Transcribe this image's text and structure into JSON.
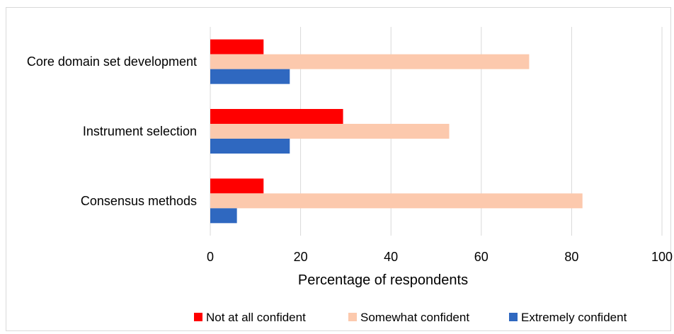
{
  "chart_data": {
    "type": "bar",
    "orientation": "horizontal",
    "categories": [
      "Core domain set development",
      "Instrument selection",
      "Consensus methods"
    ],
    "series": [
      {
        "name": "Not at all confident",
        "color": "#ff0000",
        "values": [
          11.8,
          29.4,
          11.8
        ]
      },
      {
        "name": "Somewhat confident",
        "color": "#fcc9ad",
        "values": [
          70.6,
          52.9,
          82.4
        ]
      },
      {
        "name": "Extremely confident",
        "color": "#2f68c0",
        "values": [
          17.6,
          17.6,
          5.9
        ]
      }
    ],
    "xlabel": "Percentage of respondents",
    "xlim": [
      0,
      100
    ],
    "xticks": [
      "0",
      "20",
      "40",
      "60",
      "80",
      "100"
    ],
    "grid": true,
    "legend_position": "bottom"
  }
}
